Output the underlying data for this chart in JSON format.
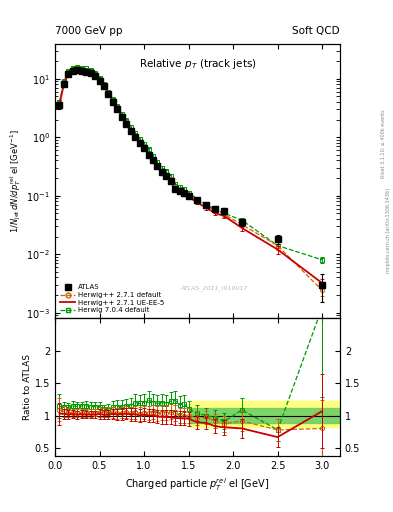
{
  "title_left": "7000 GeV pp",
  "title_right": "Soft QCD",
  "plot_title": "Relative $p_T$ (track jets)",
  "xlabel": "Charged particle $p_T^{rel}$ el [GeV]",
  "ylabel_main": "$1/N_{jet}\\,dN/dp_T^{rel}$ el [GeV$^{-1}$]",
  "ylabel_ratio": "Ratio to ATLAS",
  "watermark": "ATLAS_2011_I919017",
  "atlas_x": [
    0.05,
    0.1,
    0.15,
    0.2,
    0.25,
    0.3,
    0.35,
    0.4,
    0.45,
    0.5,
    0.55,
    0.6,
    0.65,
    0.7,
    0.75,
    0.8,
    0.85,
    0.9,
    0.95,
    1.0,
    1.05,
    1.1,
    1.15,
    1.2,
    1.25,
    1.3,
    1.35,
    1.4,
    1.45,
    1.5,
    1.6,
    1.7,
    1.8,
    1.9,
    2.1,
    2.5,
    3.0
  ],
  "atlas_y": [
    3.5,
    8.0,
    12.0,
    13.5,
    14.0,
    13.5,
    13.0,
    12.5,
    11.0,
    9.0,
    7.5,
    5.5,
    4.0,
    3.0,
    2.2,
    1.7,
    1.3,
    1.0,
    0.8,
    0.65,
    0.5,
    0.4,
    0.32,
    0.25,
    0.22,
    0.18,
    0.13,
    0.12,
    0.11,
    0.1,
    0.085,
    0.07,
    0.06,
    0.055,
    0.035,
    0.018,
    0.003
  ],
  "atlas_yerr": [
    0.5,
    0.5,
    0.6,
    0.7,
    0.7,
    0.6,
    0.6,
    0.6,
    0.5,
    0.5,
    0.4,
    0.3,
    0.25,
    0.2,
    0.15,
    0.12,
    0.1,
    0.08,
    0.07,
    0.05,
    0.04,
    0.035,
    0.028,
    0.022,
    0.02,
    0.016,
    0.012,
    0.011,
    0.01,
    0.009,
    0.008,
    0.006,
    0.006,
    0.006,
    0.005,
    0.003,
    0.0015
  ],
  "hwpp_default_x": [
    0.05,
    0.1,
    0.15,
    0.2,
    0.25,
    0.3,
    0.35,
    0.4,
    0.45,
    0.5,
    0.55,
    0.6,
    0.65,
    0.7,
    0.75,
    0.8,
    0.85,
    0.9,
    0.95,
    1.0,
    1.05,
    1.1,
    1.15,
    1.2,
    1.25,
    1.3,
    1.35,
    1.4,
    1.45,
    1.5,
    1.6,
    1.7,
    1.8,
    1.9,
    2.1,
    2.5,
    3.0
  ],
  "hwpp_default_y": [
    3.8,
    8.5,
    12.5,
    14.0,
    14.5,
    14.0,
    13.5,
    13.0,
    11.5,
    9.5,
    7.8,
    5.8,
    4.2,
    3.1,
    2.3,
    1.8,
    1.35,
    1.05,
    0.82,
    0.68,
    0.52,
    0.42,
    0.33,
    0.26,
    0.23,
    0.19,
    0.135,
    0.12,
    0.11,
    0.1,
    0.082,
    0.068,
    0.055,
    0.048,
    0.032,
    0.014,
    0.0024
  ],
  "hwpp_default_yerr": [
    0.3,
    0.4,
    0.5,
    0.5,
    0.5,
    0.5,
    0.5,
    0.4,
    0.4,
    0.4,
    0.3,
    0.25,
    0.2,
    0.15,
    0.12,
    0.09,
    0.07,
    0.06,
    0.05,
    0.04,
    0.03,
    0.025,
    0.02,
    0.016,
    0.014,
    0.012,
    0.009,
    0.008,
    0.007,
    0.007,
    0.005,
    0.004,
    0.004,
    0.004,
    0.003,
    0.002,
    0.0005
  ],
  "hwpp_uee5_x": [
    0.05,
    0.1,
    0.15,
    0.2,
    0.25,
    0.3,
    0.35,
    0.4,
    0.45,
    0.5,
    0.55,
    0.6,
    0.65,
    0.7,
    0.75,
    0.8,
    0.85,
    0.9,
    0.95,
    1.0,
    1.05,
    1.1,
    1.15,
    1.2,
    1.25,
    1.3,
    1.35,
    1.4,
    1.45,
    1.5,
    1.6,
    1.7,
    1.8,
    1.9,
    2.1,
    2.5,
    3.0
  ],
  "hwpp_uee5_y": [
    3.6,
    8.2,
    12.2,
    13.8,
    14.2,
    13.8,
    13.2,
    12.7,
    11.2,
    9.2,
    7.6,
    5.6,
    4.1,
    3.05,
    2.25,
    1.75,
    1.32,
    1.02,
    0.8,
    0.66,
    0.5,
    0.4,
    0.315,
    0.245,
    0.215,
    0.175,
    0.125,
    0.115,
    0.105,
    0.095,
    0.076,
    0.062,
    0.05,
    0.045,
    0.028,
    0.012,
    0.0032
  ],
  "hwpp_uee5_yerr": [
    0.3,
    0.4,
    0.5,
    0.5,
    0.5,
    0.5,
    0.5,
    0.4,
    0.4,
    0.4,
    0.3,
    0.25,
    0.2,
    0.15,
    0.12,
    0.09,
    0.07,
    0.06,
    0.05,
    0.04,
    0.03,
    0.025,
    0.02,
    0.016,
    0.014,
    0.012,
    0.009,
    0.008,
    0.007,
    0.007,
    0.005,
    0.004,
    0.004,
    0.004,
    0.003,
    0.002,
    0.0006
  ],
  "hw7_default_x": [
    0.05,
    0.1,
    0.15,
    0.2,
    0.25,
    0.3,
    0.35,
    0.4,
    0.45,
    0.5,
    0.55,
    0.6,
    0.65,
    0.7,
    0.75,
    0.8,
    0.85,
    0.9,
    0.95,
    1.0,
    1.05,
    1.1,
    1.15,
    1.2,
    1.25,
    1.3,
    1.35,
    1.4,
    1.45,
    1.5,
    1.6,
    1.7,
    1.8,
    1.9,
    2.1,
    2.5,
    3.0
  ],
  "hw7_default_y": [
    4.0,
    9.0,
    13.5,
    15.5,
    16.0,
    15.5,
    15.0,
    14.2,
    12.5,
    10.2,
    8.2,
    6.0,
    4.5,
    3.4,
    2.5,
    1.95,
    1.5,
    1.2,
    0.95,
    0.78,
    0.62,
    0.48,
    0.38,
    0.3,
    0.26,
    0.22,
    0.16,
    0.14,
    0.13,
    0.11,
    0.088,
    0.07,
    0.058,
    0.05,
    0.038,
    0.014,
    0.008
  ],
  "hw7_default_yerr": [
    0.3,
    0.4,
    0.5,
    0.6,
    0.6,
    0.6,
    0.5,
    0.5,
    0.5,
    0.4,
    0.35,
    0.3,
    0.25,
    0.2,
    0.15,
    0.12,
    0.1,
    0.08,
    0.07,
    0.055,
    0.045,
    0.035,
    0.028,
    0.022,
    0.018,
    0.016,
    0.011,
    0.01,
    0.009,
    0.008,
    0.006,
    0.005,
    0.004,
    0.004,
    0.003,
    0.002,
    0.001
  ],
  "xlim": [
    0.0,
    3.2
  ],
  "ylim_main": [
    0.0008,
    40
  ],
  "ylim_ratio": [
    0.38,
    2.5
  ],
  "color_atlas": "#000000",
  "color_hwpp_default": "#cc6600",
  "color_hwpp_uee5": "#cc0000",
  "color_hw7_default": "#009900",
  "band_yellow_lo": 0.82,
  "band_yellow_hi": 1.22,
  "band_green_lo": 0.88,
  "band_green_hi": 1.12,
  "band_start_x": 1.5,
  "band_yellow_color": "#ffff66",
  "band_green_color": "#66cc66"
}
